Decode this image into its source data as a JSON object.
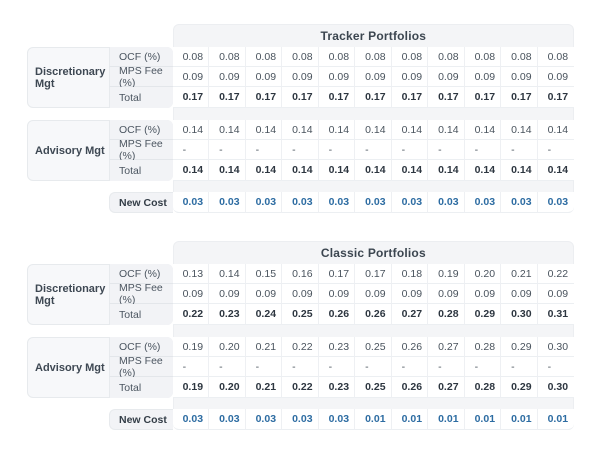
{
  "colors": {
    "accent_blue": "#2d6ca2",
    "panel_bg": "#f4f5f7",
    "label_bg": "#f2f3f6"
  },
  "tables": [
    {
      "title": "Tracker Portfolios",
      "groups": [
        {
          "label": "Discretionary Mgt",
          "rows": [
            {
              "label": "OCF (%)",
              "bold": false,
              "values": [
                "0.08",
                "0.08",
                "0.08",
                "0.08",
                "0.08",
                "0.08",
                "0.08",
                "0.08",
                "0.08",
                "0.08",
                "0.08"
              ]
            },
            {
              "label": "MPS Fee (%)",
              "bold": false,
              "values": [
                "0.09",
                "0.09",
                "0.09",
                "0.09",
                "0.09",
                "0.09",
                "0.09",
                "0.09",
                "0.09",
                "0.09",
                "0.09"
              ]
            },
            {
              "label": "Total",
              "bold": true,
              "values": [
                "0.17",
                "0.17",
                "0.17",
                "0.17",
                "0.17",
                "0.17",
                "0.17",
                "0.17",
                "0.17",
                "0.17",
                "0.17"
              ]
            }
          ]
        },
        {
          "label": "Advisory Mgt",
          "rows": [
            {
              "label": "OCF (%)",
              "bold": false,
              "values": [
                "0.14",
                "0.14",
                "0.14",
                "0.14",
                "0.14",
                "0.14",
                "0.14",
                "0.14",
                "0.14",
                "0.14",
                "0.14"
              ]
            },
            {
              "label": "MPS Fee (%)",
              "bold": false,
              "values": [
                "-",
                "-",
                "-",
                "-",
                "-",
                "-",
                "-",
                "-",
                "-",
                "-",
                "-"
              ]
            },
            {
              "label": "Total",
              "bold": true,
              "values": [
                "0.14",
                "0.14",
                "0.14",
                "0.14",
                "0.14",
                "0.14",
                "0.14",
                "0.14",
                "0.14",
                "0.14",
                "0.14"
              ]
            }
          ]
        }
      ],
      "footer": {
        "label": "New Cost",
        "values": [
          "0.03",
          "0.03",
          "0.03",
          "0.03",
          "0.03",
          "0.03",
          "0.03",
          "0.03",
          "0.03",
          "0.03",
          "0.03"
        ]
      }
    },
    {
      "title": "Classic Portfolios",
      "groups": [
        {
          "label": "Discretionary Mgt",
          "rows": [
            {
              "label": "OCF (%)",
              "bold": false,
              "values": [
                "0.13",
                "0.14",
                "0.15",
                "0.16",
                "0.17",
                "0.17",
                "0.18",
                "0.19",
                "0.20",
                "0.21",
                "0.22"
              ]
            },
            {
              "label": "MPS Fee (%)",
              "bold": false,
              "values": [
                "0.09",
                "0.09",
                "0.09",
                "0.09",
                "0.09",
                "0.09",
                "0.09",
                "0.09",
                "0.09",
                "0.09",
                "0.09"
              ]
            },
            {
              "label": "Total",
              "bold": true,
              "values": [
                "0.22",
                "0.23",
                "0.24",
                "0.25",
                "0.26",
                "0.26",
                "0.27",
                "0.28",
                "0.29",
                "0.30",
                "0.31"
              ]
            }
          ]
        },
        {
          "label": "Advisory Mgt",
          "rows": [
            {
              "label": "OCF (%)",
              "bold": false,
              "values": [
                "0.19",
                "0.20",
                "0.21",
                "0.22",
                "0.23",
                "0.25",
                "0.26",
                "0.27",
                "0.28",
                "0.29",
                "0.30"
              ]
            },
            {
              "label": "MPS Fee (%)",
              "bold": false,
              "values": [
                "-",
                "-",
                "-",
                "-",
                "-",
                "-",
                "-",
                "-",
                "-",
                "-",
                "-"
              ]
            },
            {
              "label": "Total",
              "bold": true,
              "values": [
                "0.19",
                "0.20",
                "0.21",
                "0.22",
                "0.23",
                "0.25",
                "0.26",
                "0.27",
                "0.28",
                "0.29",
                "0.30"
              ]
            }
          ]
        }
      ],
      "footer": {
        "label": "New Cost",
        "values": [
          "0.03",
          "0.03",
          "0.03",
          "0.03",
          "0.03",
          "0.01",
          "0.01",
          "0.01",
          "0.01",
          "0.01",
          "0.01"
        ]
      }
    }
  ]
}
